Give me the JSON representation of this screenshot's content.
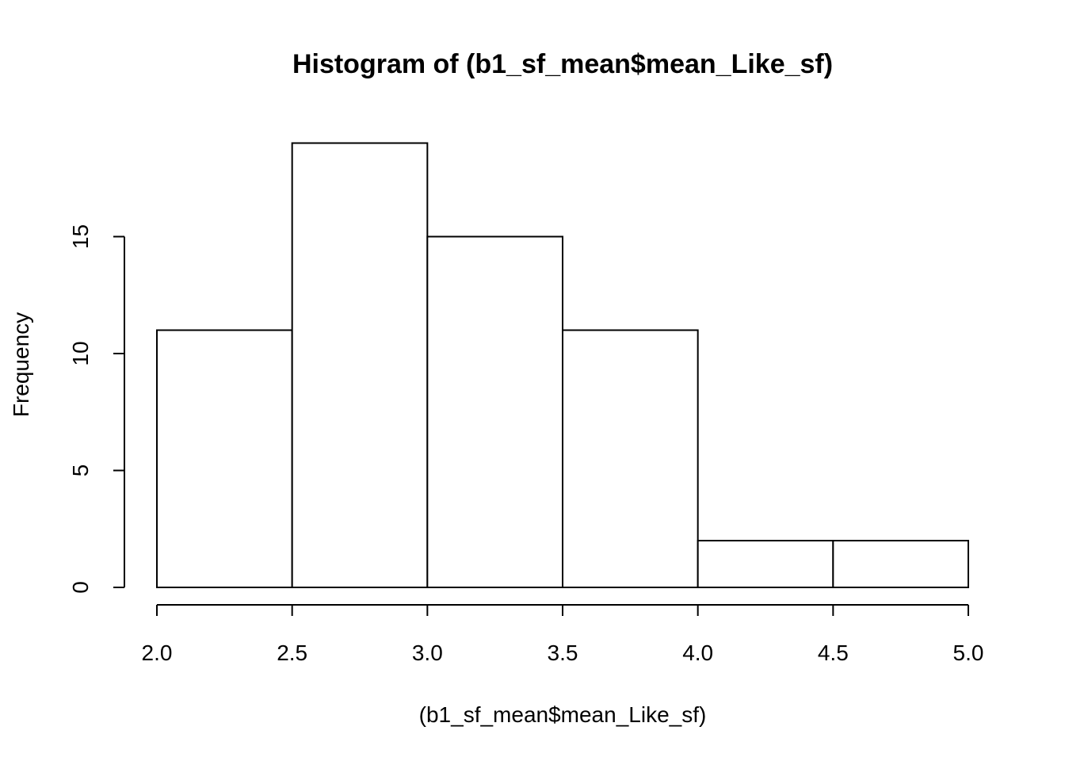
{
  "chart_data": {
    "type": "bar",
    "title": "Histogram of (b1_sf_mean$mean_Like_sf)",
    "xlabel": "(b1_sf_mean$mean_Like_sf)",
    "ylabel": "Frequency",
    "bins": [
      {
        "start": 2.0,
        "end": 2.5,
        "count": 11
      },
      {
        "start": 2.5,
        "end": 3.0,
        "count": 19
      },
      {
        "start": 3.0,
        "end": 3.5,
        "count": 15
      },
      {
        "start": 3.5,
        "end": 4.0,
        "count": 11
      },
      {
        "start": 4.0,
        "end": 4.5,
        "count": 2
      },
      {
        "start": 4.5,
        "end": 5.0,
        "count": 2
      }
    ],
    "xlim": [
      2.0,
      5.0
    ],
    "ylim": [
      0,
      19
    ],
    "x_ticks": [
      "2.0",
      "2.5",
      "3.0",
      "3.5",
      "4.0",
      "4.5",
      "5.0"
    ],
    "y_ticks": [
      "0",
      "5",
      "10",
      "15"
    ],
    "grid": false,
    "legend": "none",
    "colors": {
      "bar_fill": "#ffffff",
      "bar_stroke": "#000000"
    }
  }
}
